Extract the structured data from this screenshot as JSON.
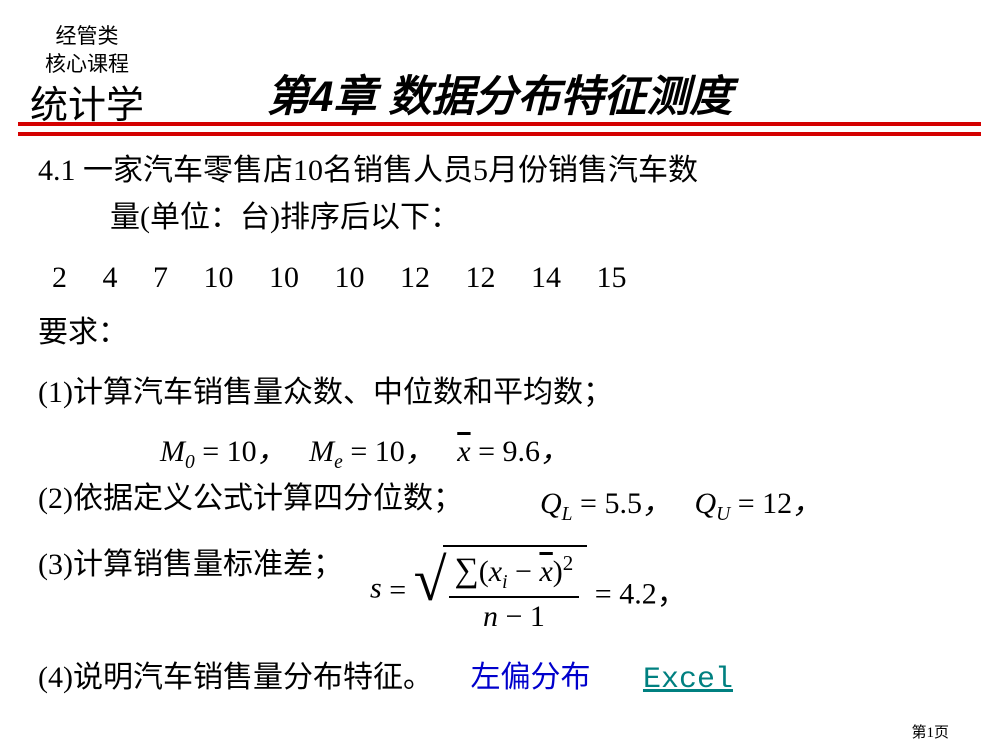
{
  "corner": {
    "line1": "经管类",
    "line2": "核心课程",
    "line3": "统计学"
  },
  "chapter_title": "第4章  数据分布特征测度",
  "question": {
    "line1": "4.1 一家汽车零售店10名销售人员5月份销售汽车数",
    "line2": "量(单位：台)排序后以下："
  },
  "data_values": "2  4  7  10  10  10  12  12  14  15",
  "req_label": "要求：",
  "items": {
    "i1": "(1)计算汽车销售量众数、中位数和平均数；",
    "i2": "(2)依据定义公式计算四分位数；",
    "i3": "(3)计算销售量标准差；",
    "i4": "(4)说明汽车销售量分布特征。"
  },
  "formulas": {
    "f1_M0_label": "M",
    "f1_M0_sub": "0",
    "f1_M0_val": "10",
    "f1_Me_label": "M",
    "f1_Me_sub": "e",
    "f1_Me_val": "10",
    "f1_xbar_label": "x",
    "f1_xbar_val": "9.6",
    "f2_QL_label": "Q",
    "f2_QL_sub": "L",
    "f2_QL_val": "5.5",
    "f2_QU_label": "Q",
    "f2_QU_sub": "U",
    "f2_QU_val": "12",
    "f3_s": "s",
    "f3_sum": "∑",
    "f3_xi": "x",
    "f3_i": "i",
    "f3_xbar": "x",
    "f3_sq": "2",
    "f3_n": "n",
    "f3_minus1": "1",
    "f3_val": "4.2"
  },
  "answer4": "左偏分布",
  "excel_link": "Excel",
  "page_num": "第1页",
  "colors": {
    "red_line": "#d40000",
    "blue": "#0000cc",
    "teal": "#008080"
  }
}
